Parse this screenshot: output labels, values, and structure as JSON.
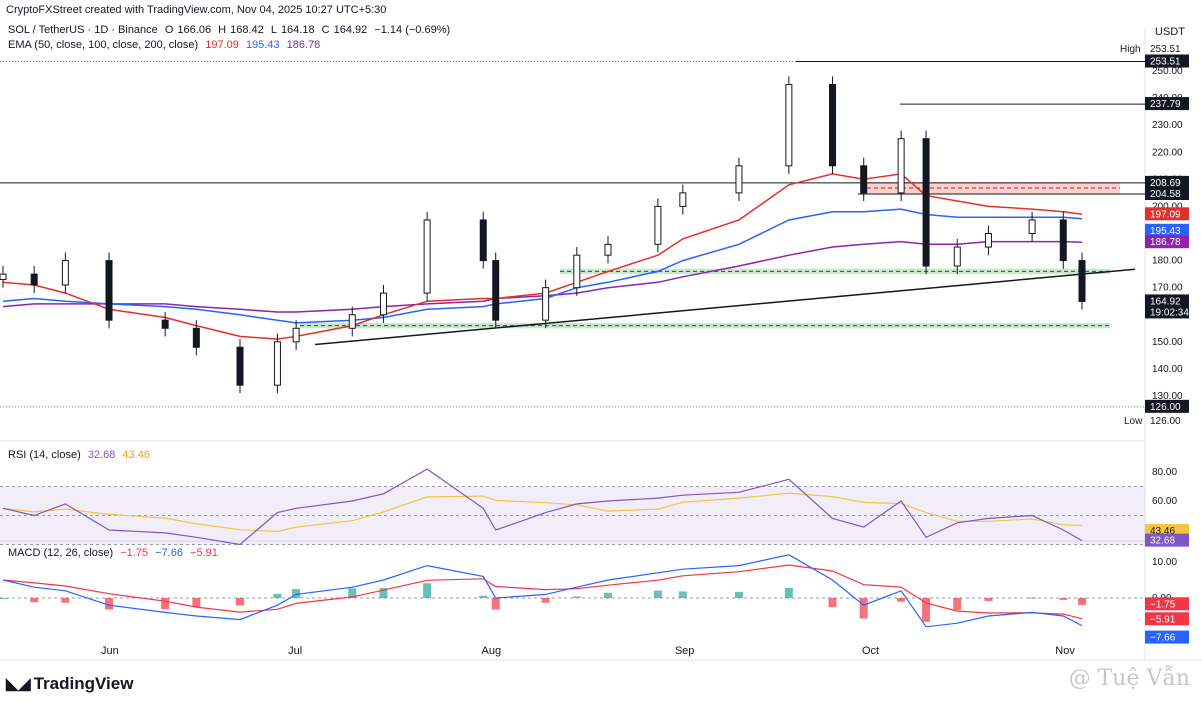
{
  "header": {
    "credit": "CryptoFXStreet created with TradingView.com, Nov 04, 2025 10:27 UTC+5:30",
    "currency": "USDT"
  },
  "legend": {
    "symbol": "SOL / TetherUS · 1D · Binance",
    "o_label": "O",
    "o_value": "166.06",
    "h_label": "H",
    "h_value": "168.42",
    "l_label": "L",
    "l_value": "164.18",
    "c_label": "C",
    "c_value": "164.92",
    "change": "−1.14 (−0.69%)",
    "ema_label": "EMA (50, close, 100, close, 200, close)",
    "ema50": "197.09",
    "ema100": "195.43",
    "ema200": "186.78"
  },
  "rsi_legend": {
    "label": "RSI (14, close)",
    "rsi": "32.68",
    "ma": "43.46"
  },
  "macd_legend": {
    "label": "MACD (12, 26, close)",
    "hist": "−1.75",
    "macd": "−7.66",
    "signal": "−5.91"
  },
  "price_axis": {
    "high_label": "High",
    "high_value": "253.51",
    "low_label": "Low",
    "low_value": "126.00",
    "ticks": [
      "250.00",
      "240.00",
      "230.00",
      "220.00",
      "210.00",
      "200.00",
      "190.00",
      "180.00",
      "170.00",
      "160.00",
      "150.00",
      "140.00",
      "130.00"
    ],
    "tags": {
      "high": "253.51",
      "r237": "237.79",
      "r208": "208.69",
      "r204": "204.58",
      "ema50": "197.09",
      "ema100": "195.43",
      "ema200": "186.78",
      "last": "164.92",
      "countdown": "19:02:34",
      "low": "126.00"
    }
  },
  "rsi_axis": {
    "ticks": [
      "80.00",
      "60.00",
      "40.00"
    ],
    "tags": {
      "ma": "43.46",
      "rsi": "32.68"
    }
  },
  "macd_axis": {
    "ticks": [
      "10.00",
      "0.00"
    ],
    "tags": {
      "hist": "−1.75",
      "signal": "−5.91",
      "macd": "−7.66"
    }
  },
  "time_axis": [
    "Jun",
    "Jul",
    "Aug",
    "Sep",
    "Oct",
    "Nov"
  ],
  "branding": {
    "logo": "TradingView",
    "watermark": "@ Tuệ Vẫn"
  },
  "colors": {
    "up": "#ffffff",
    "down": "#131722",
    "ema50": "#e0302e",
    "ema100": "#2962ff",
    "ema200": "#8e24aa",
    "rsi": "#7e57c2",
    "rsi_ma": "#f5c542",
    "macd": "#2962ff",
    "signal": "#f23645",
    "hist_pos": "#26a69a",
    "hist_neg": "#f23645",
    "support_zone": "#4caf50",
    "resistance_zone": "#f44336"
  },
  "chart_data": {
    "type": "candlestick",
    "instrument": "SOL / TetherUS",
    "timeframe": "1D",
    "x": [
      "2025-05-15",
      "2025-05-20",
      "2025-05-25",
      "2025-06-01",
      "2025-06-10",
      "2025-06-15",
      "2025-06-22",
      "2025-06-28",
      "2025-07-01",
      "2025-07-10",
      "2025-07-15",
      "2025-07-22",
      "2025-07-31",
      "2025-08-02",
      "2025-08-10",
      "2025-08-15",
      "2025-08-20",
      "2025-08-28",
      "2025-09-01",
      "2025-09-10",
      "2025-09-18",
      "2025-09-25",
      "2025-09-30",
      "2025-10-06",
      "2025-10-10",
      "2025-10-15",
      "2025-10-20",
      "2025-10-27",
      "2025-11-01",
      "2025-11-04"
    ],
    "close": [
      175,
      171,
      180,
      158,
      155,
      148,
      134,
      150,
      155,
      160,
      168,
      195,
      180,
      158,
      170,
      182,
      186,
      200,
      205,
      215,
      245,
      215,
      205,
      225,
      178,
      185,
      190,
      195,
      180,
      164.92
    ],
    "ema50": [
      172,
      171,
      168,
      162,
      159,
      156,
      152,
      151,
      152,
      156,
      160,
      165,
      166,
      166,
      168,
      172,
      176,
      182,
      188,
      195,
      208,
      212,
      210,
      212,
      204,
      202,
      200,
      199,
      198,
      197.09
    ],
    "ema100": [
      165,
      166,
      165,
      164,
      163,
      162,
      160,
      158,
      157,
      158,
      159,
      162,
      163,
      164,
      166,
      170,
      172,
      176,
      180,
      186,
      195,
      198,
      198,
      199,
      197,
      196,
      196,
      196,
      196,
      195.43
    ],
    "ema200": [
      163,
      164,
      164,
      164,
      164,
      163,
      162,
      161,
      161,
      162,
      163,
      164,
      165,
      166,
      167,
      168,
      170,
      172,
      174,
      178,
      182,
      185,
      186,
      187,
      186,
      186,
      187,
      187,
      187,
      186.78
    ],
    "rsi": [
      55,
      50,
      58,
      40,
      38,
      35,
      30,
      52,
      55,
      60,
      65,
      82,
      55,
      40,
      52,
      58,
      60,
      62,
      64,
      66,
      75,
      48,
      42,
      60,
      35,
      45,
      48,
      50,
      40,
      32.68
    ],
    "macd": [
      5,
      3,
      2,
      -2,
      -4,
      -5,
      -6,
      -2,
      1,
      3,
      5,
      9,
      6,
      0,
      1,
      3,
      5,
      7,
      8,
      9,
      12,
      5,
      -2,
      2,
      -8,
      -7,
      -5,
      -4,
      -5,
      -7.66
    ],
    "ylim": [
      120,
      256
    ],
    "annotations": {
      "high": 253.51,
      "low": 126.0,
      "resistance": [
        237.79,
        208.69,
        204.58
      ],
      "support_zones": [
        [
          175,
          177
        ],
        [
          155,
          157
        ]
      ]
    }
  }
}
